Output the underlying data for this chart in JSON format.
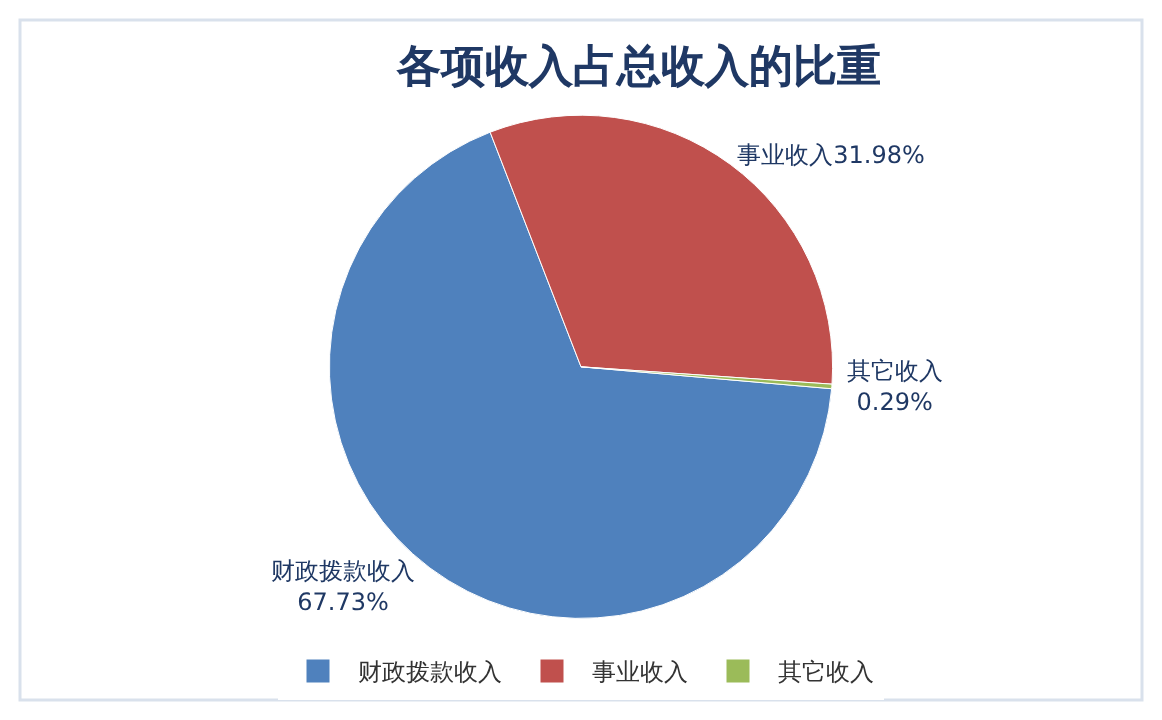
{
  "chart_data": {
    "type": "pie",
    "title": "各项收入占总收入的比重",
    "categories": [
      "财政拨款收入",
      "事业收入",
      "其它收入"
    ],
    "values": [
      67.73,
      31.98,
      0.29
    ],
    "colors": [
      "#4f81bd",
      "#c0504d",
      "#9bbb59"
    ],
    "value_labels": [
      "67.73%",
      "31.98%",
      "0.29%"
    ],
    "legend": "bottom"
  }
}
